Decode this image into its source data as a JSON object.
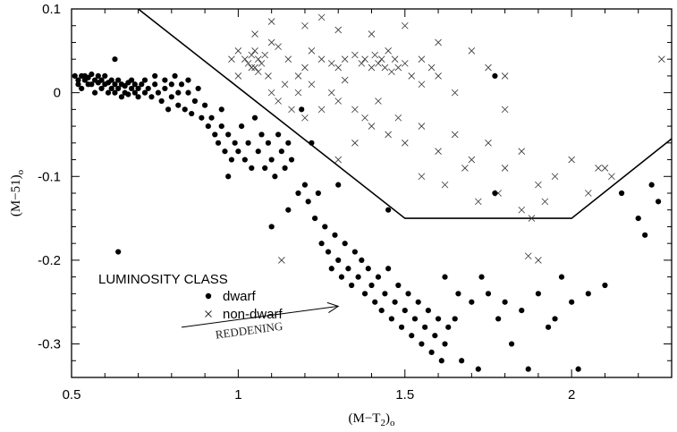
{
  "chart_data": {
    "type": "scatter",
    "title": "",
    "xlabel": "(M−T2)o",
    "xlabel_parts": {
      "pre": "(M−T",
      "sub": "2",
      "post": ")",
      "tail": "o"
    },
    "ylabel": "(M−51)o",
    "ylabel_parts": {
      "main": "(M−51)",
      "tail": "o"
    },
    "xlim": [
      0.5,
      2.3
    ],
    "ylim": [
      -0.34,
      0.1
    ],
    "x_ticks": [
      0.5,
      1,
      1.5,
      2
    ],
    "x_tick_labels": [
      "0.5",
      "1",
      "1.5",
      "2"
    ],
    "y_ticks": [
      0.1,
      0,
      -0.1,
      -0.2,
      -0.3
    ],
    "y_tick_labels": [
      "0.1",
      "0",
      "-0.1",
      "-0.2",
      "-0.3"
    ],
    "grid": false,
    "legend": {
      "title": "LUMINOSITY CLASS",
      "entries": [
        {
          "label": "dwarf",
          "marker": "filled-circle"
        },
        {
          "label": "non-dwarf",
          "marker": "cross"
        }
      ],
      "placement": "lower-left"
    },
    "annotations": [
      {
        "text": "REDDENING",
        "arrow_from": [
          0.83,
          -0.28
        ],
        "arrow_to": [
          1.3,
          -0.255
        ]
      }
    ],
    "boundary_line": {
      "x": [
        0.7,
        1.5,
        2.0,
        2.3
      ],
      "y": [
        0.1,
        -0.15,
        -0.15,
        -0.055
      ]
    },
    "series": [
      {
        "name": "dwarf",
        "marker": "filled-circle",
        "points": [
          [
            0.51,
            0.02
          ],
          [
            0.52,
            0.015
          ],
          [
            0.52,
            0.01
          ],
          [
            0.53,
            0.02
          ],
          [
            0.53,
            0.005
          ],
          [
            0.54,
            0.015
          ],
          [
            0.54,
            0.02
          ],
          [
            0.55,
            0.01
          ],
          [
            0.55,
            0.018
          ],
          [
            0.56,
            0.022
          ],
          [
            0.56,
            0.01
          ],
          [
            0.57,
            0.015
          ],
          [
            0.57,
            0.0
          ],
          [
            0.58,
            0.012
          ],
          [
            0.58,
            0.02
          ],
          [
            0.59,
            0.005
          ],
          [
            0.59,
            0.015
          ],
          [
            0.6,
            0.01
          ],
          [
            0.6,
            0.02
          ],
          [
            0.61,
            0.0
          ],
          [
            0.61,
            0.012
          ],
          [
            0.62,
            0.015
          ],
          [
            0.62,
            0.005
          ],
          [
            0.63,
            0.01
          ],
          [
            0.63,
            0.0
          ],
          [
            0.64,
            0.015
          ],
          [
            0.64,
            0.005
          ],
          [
            0.65,
            0.01
          ],
          [
            0.65,
            -0.005
          ],
          [
            0.66,
            0.008
          ],
          [
            0.66,
            0.0
          ],
          [
            0.67,
            0.012
          ],
          [
            0.67,
            -0.002
          ],
          [
            0.68,
            0.005
          ],
          [
            0.68,
            0.015
          ],
          [
            0.69,
            0.0
          ],
          [
            0.69,
            0.01
          ],
          [
            0.7,
            0.005
          ],
          [
            0.7,
            -0.005
          ],
          [
            0.71,
            0.01
          ],
          [
            0.72,
            0.0
          ],
          [
            0.72,
            0.015
          ],
          [
            0.73,
            0.005
          ],
          [
            0.74,
            -0.005
          ],
          [
            0.75,
            0.01
          ],
          [
            0.75,
            0.02
          ],
          [
            0.76,
            0.0
          ],
          [
            0.77,
            -0.01
          ],
          [
            0.78,
            0.015
          ],
          [
            0.78,
            0.005
          ],
          [
            0.79,
            -0.02
          ],
          [
            0.8,
            0.01
          ],
          [
            0.8,
            -0.005
          ],
          [
            0.81,
            0.02
          ],
          [
            0.82,
            0.0
          ],
          [
            0.82,
            -0.015
          ],
          [
            0.83,
            0.01
          ],
          [
            0.84,
            -0.02
          ],
          [
            0.85,
            0.0
          ],
          [
            0.85,
            0.015
          ],
          [
            0.86,
            -0.025
          ],
          [
            0.87,
            -0.01
          ],
          [
            0.88,
            0.005
          ],
          [
            0.89,
            -0.03
          ],
          [
            0.9,
            -0.015
          ],
          [
            0.63,
            0.04
          ],
          [
            0.64,
            -0.19
          ],
          [
            0.91,
            -0.04
          ],
          [
            0.92,
            -0.03
          ],
          [
            0.93,
            -0.05
          ],
          [
            0.94,
            -0.06
          ],
          [
            0.95,
            -0.04
          ],
          [
            0.96,
            -0.07
          ],
          [
            0.97,
            -0.05
          ],
          [
            0.98,
            -0.08
          ],
          [
            0.99,
            -0.06
          ],
          [
            1.0,
            -0.07
          ],
          [
            1.01,
            -0.04
          ],
          [
            1.02,
            -0.08
          ],
          [
            1.03,
            -0.06
          ],
          [
            1.04,
            -0.09
          ],
          [
            1.05,
            -0.03
          ],
          [
            1.06,
            -0.07
          ],
          [
            1.07,
            -0.05
          ],
          [
            1.08,
            -0.09
          ],
          [
            1.09,
            -0.06
          ],
          [
            1.1,
            -0.08
          ],
          [
            1.11,
            -0.1
          ],
          [
            1.12,
            -0.05
          ],
          [
            1.13,
            -0.07
          ],
          [
            1.14,
            -0.09
          ],
          [
            1.15,
            -0.06
          ],
          [
            1.16,
            -0.08
          ],
          [
            1.18,
            -0.12
          ],
          [
            1.19,
            -0.02
          ],
          [
            1.2,
            -0.11
          ],
          [
            1.21,
            -0.13
          ],
          [
            1.22,
            -0.06
          ],
          [
            1.23,
            -0.15
          ],
          [
            1.24,
            -0.12
          ],
          [
            1.25,
            -0.18
          ],
          [
            1.26,
            -0.16
          ],
          [
            1.27,
            -0.19
          ],
          [
            1.28,
            -0.21
          ],
          [
            1.29,
            -0.17
          ],
          [
            1.3,
            -0.2
          ],
          [
            1.31,
            -0.22
          ],
          [
            1.32,
            -0.18
          ],
          [
            1.33,
            -0.21
          ],
          [
            1.34,
            -0.23
          ],
          [
            1.35,
            -0.19
          ],
          [
            1.36,
            -0.22
          ],
          [
            1.37,
            -0.2
          ],
          [
            1.38,
            -0.24
          ],
          [
            1.39,
            -0.21
          ],
          [
            1.4,
            -0.23
          ],
          [
            1.41,
            -0.25
          ],
          [
            1.42,
            -0.22
          ],
          [
            1.43,
            -0.26
          ],
          [
            1.44,
            -0.24
          ],
          [
            1.45,
            -0.21
          ],
          [
            1.46,
            -0.27
          ],
          [
            1.47,
            -0.25
          ],
          [
            1.48,
            -0.23
          ],
          [
            1.49,
            -0.28
          ],
          [
            1.5,
            -0.26
          ],
          [
            1.51,
            -0.24
          ],
          [
            1.52,
            -0.29
          ],
          [
            1.53,
            -0.27
          ],
          [
            1.54,
            -0.25
          ],
          [
            1.55,
            -0.3
          ],
          [
            1.56,
            -0.28
          ],
          [
            1.57,
            -0.26
          ],
          [
            1.58,
            -0.31
          ],
          [
            1.59,
            -0.29
          ],
          [
            1.6,
            -0.27
          ],
          [
            1.61,
            -0.32
          ],
          [
            1.62,
            -0.3
          ],
          [
            1.63,
            -0.28
          ],
          [
            1.65,
            -0.27
          ],
          [
            1.67,
            -0.32
          ],
          [
            1.7,
            -0.25
          ],
          [
            1.72,
            -0.33
          ],
          [
            1.75,
            -0.24
          ],
          [
            1.78,
            -0.27
          ],
          [
            1.8,
            -0.25
          ],
          [
            1.82,
            -0.3
          ],
          [
            1.85,
            -0.26
          ],
          [
            1.87,
            -0.33
          ],
          [
            1.9,
            -0.24
          ],
          [
            1.93,
            -0.28
          ],
          [
            1.95,
            -0.27
          ],
          [
            1.97,
            -0.22
          ],
          [
            2.0,
            -0.25
          ],
          [
            2.02,
            -0.33
          ],
          [
            2.05,
            -0.24
          ],
          [
            2.1,
            -0.23
          ],
          [
            2.15,
            -0.12
          ],
          [
            2.2,
            -0.15
          ],
          [
            2.22,
            -0.17
          ],
          [
            2.24,
            -0.11
          ],
          [
            2.26,
            -0.13
          ],
          [
            1.62,
            -0.22
          ],
          [
            1.66,
            -0.24
          ],
          [
            1.73,
            -0.22
          ],
          [
            1.77,
            -0.12
          ],
          [
            1.3,
            -0.11
          ],
          [
            1.45,
            -0.14
          ],
          [
            1.15,
            -0.14
          ],
          [
            1.1,
            -0.16
          ],
          [
            1.77,
            0.02
          ],
          [
            0.95,
            -0.02
          ],
          [
            0.97,
            -0.1
          ]
        ]
      },
      {
        "name": "non-dwarf",
        "marker": "cross",
        "points": [
          [
            1.02,
            0.04
          ],
          [
            1.03,
            0.035
          ],
          [
            1.04,
            0.045
          ],
          [
            1.05,
            0.03
          ],
          [
            1.06,
            0.04
          ],
          [
            1.07,
            0.035
          ],
          [
            1.08,
            0.045
          ],
          [
            1.04,
            0.03
          ],
          [
            1.05,
            0.05
          ],
          [
            1.06,
            0.025
          ],
          [
            1.0,
            0.05
          ],
          [
            0.98,
            0.04
          ],
          [
            1.09,
            0.02
          ],
          [
            1.1,
            0.06
          ],
          [
            1.12,
            0.055
          ],
          [
            1.15,
            0.04
          ],
          [
            1.18,
            0.02
          ],
          [
            1.2,
            0.03
          ],
          [
            1.22,
            0.05
          ],
          [
            1.25,
            0.04
          ],
          [
            1.28,
            0.035
          ],
          [
            1.3,
            0.03
          ],
          [
            1.32,
            0.04
          ],
          [
            1.35,
            0.045
          ],
          [
            1.37,
            0.035
          ],
          [
            1.38,
            0.04
          ],
          [
            1.4,
            0.03
          ],
          [
            1.41,
            0.045
          ],
          [
            1.42,
            0.035
          ],
          [
            1.43,
            0.04
          ],
          [
            1.44,
            0.03
          ],
          [
            1.45,
            0.05
          ],
          [
            1.46,
            0.025
          ],
          [
            1.47,
            0.04
          ],
          [
            1.48,
            0.03
          ],
          [
            1.5,
            0.035
          ],
          [
            1.52,
            0.02
          ],
          [
            1.55,
            0.04
          ],
          [
            1.58,
            0.03
          ],
          [
            1.6,
            0.02
          ],
          [
            1.1,
            0.0
          ],
          [
            1.12,
            -0.01
          ],
          [
            1.14,
            0.01
          ],
          [
            1.16,
            -0.02
          ],
          [
            1.18,
            0.0
          ],
          [
            1.2,
            -0.03
          ],
          [
            1.22,
            0.01
          ],
          [
            1.25,
            -0.02
          ],
          [
            1.28,
            0.0
          ],
          [
            1.3,
            -0.01
          ],
          [
            1.32,
            0.015
          ],
          [
            1.35,
            -0.02
          ],
          [
            1.38,
            -0.03
          ],
          [
            1.4,
            -0.04
          ],
          [
            1.42,
            -0.01
          ],
          [
            1.45,
            -0.05
          ],
          [
            1.48,
            -0.03
          ],
          [
            1.5,
            -0.06
          ],
          [
            1.55,
            -0.04
          ],
          [
            1.6,
            -0.07
          ],
          [
            1.65,
            -0.05
          ],
          [
            1.7,
            -0.08
          ],
          [
            1.75,
            -0.06
          ],
          [
            1.8,
            -0.09
          ],
          [
            1.85,
            -0.07
          ],
          [
            1.9,
            -0.11
          ],
          [
            1.95,
            -0.1
          ],
          [
            2.0,
            -0.08
          ],
          [
            2.05,
            -0.12
          ],
          [
            1.2,
            0.08
          ],
          [
            1.3,
            0.075
          ],
          [
            1.25,
            0.09
          ],
          [
            1.1,
            0.085
          ],
          [
            1.05,
            0.07
          ],
          [
            1.4,
            0.07
          ],
          [
            1.5,
            0.08
          ],
          [
            1.6,
            0.06
          ],
          [
            1.7,
            0.05
          ],
          [
            1.8,
            0.02
          ],
          [
            1.55,
            -0.1
          ],
          [
            1.62,
            -0.11
          ],
          [
            1.68,
            -0.09
          ],
          [
            1.72,
            -0.13
          ],
          [
            1.78,
            -0.12
          ],
          [
            1.85,
            -0.14
          ],
          [
            1.88,
            -0.15
          ],
          [
            1.92,
            -0.13
          ],
          [
            2.1,
            -0.09
          ],
          [
            2.12,
            -0.1
          ],
          [
            2.08,
            -0.09
          ],
          [
            2.27,
            0.04
          ],
          [
            1.13,
            -0.2
          ],
          [
            1.87,
            -0.195
          ],
          [
            1.9,
            -0.2
          ],
          [
            1.3,
            -0.08
          ],
          [
            1.35,
            -0.06
          ],
          [
            1.0,
            0.02
          ],
          [
            1.55,
            0.01
          ],
          [
            1.65,
            0.0
          ],
          [
            1.75,
            0.03
          ],
          [
            1.8,
            -0.02
          ]
        ]
      }
    ]
  }
}
